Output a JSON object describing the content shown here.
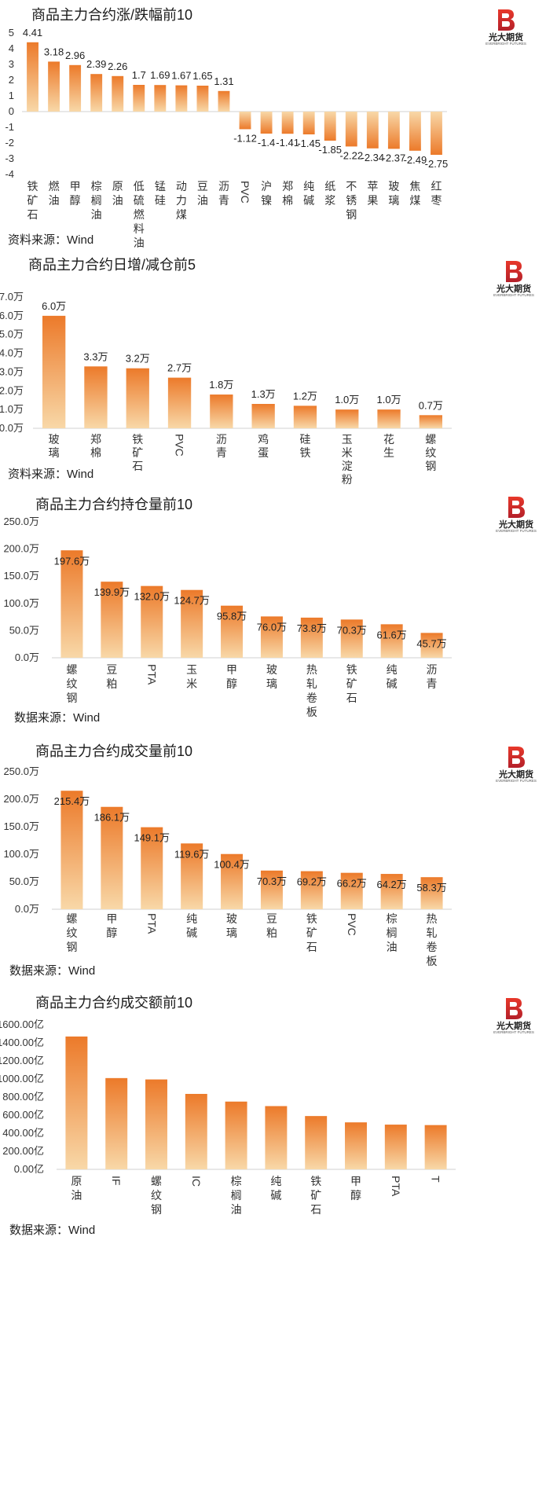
{
  "brand": {
    "name": "光大期货",
    "name_en": "EVERBRIGHT FUTURES",
    "colors": {
      "bar_top": "#ec7a2a",
      "bar_bottom": "#f8d8a8",
      "logo": "#e8382a",
      "logo_dark": "#b3202a"
    }
  },
  "chart_data": [
    {
      "type": "bar",
      "title": "商品主力合约涨/跌幅前10",
      "source": "资料来源：Wind",
      "categories": [
        "铁矿石",
        "燃油",
        "甲醇",
        "棕榈油",
        "原油",
        "低硫燃料油",
        "锰硅",
        "动力煤",
        "豆油",
        "沥青",
        "PVC",
        "沪镍",
        "郑棉",
        "纯碱",
        "纸浆",
        "不锈钢",
        "苹果",
        "玻璃",
        "焦煤",
        "红枣"
      ],
      "values": [
        4.41,
        3.18,
        2.96,
        2.39,
        2.26,
        1.7,
        1.69,
        1.67,
        1.65,
        1.31,
        -1.12,
        -1.4,
        -1.41,
        -1.45,
        -1.85,
        -2.22,
        -2.34,
        -2.37,
        -2.49,
        -2.75
      ],
      "data_labels": [
        "4.41",
        "3.18",
        "2.96",
        "2.39",
        "2.26",
        "1.7",
        "1.69",
        "1.67",
        "1.65",
        "1.31",
        "-1.12",
        "-1.4",
        "-1.41",
        "-1.45",
        "-1.85",
        "-2.22",
        "-2.34",
        "-2.37",
        "-2.49",
        "-2.75"
      ],
      "y_ticks": [
        "5",
        "4",
        "3",
        "2",
        "1",
        "0",
        "-1",
        "-2",
        "-3",
        "-4"
      ],
      "ylim": [
        -4,
        5
      ],
      "grid": false
    },
    {
      "type": "bar",
      "title": "商品主力合约日增/减仓前5",
      "source": "资料来源：Wind",
      "categories": [
        "玻璃",
        "郑棉",
        "铁矿石",
        "PVC",
        "沥青",
        "鸡蛋",
        "硅铁",
        "玉米淀粉",
        "花生",
        "螺纹钢"
      ],
      "values": [
        6.0,
        3.3,
        3.2,
        2.7,
        1.8,
        1.3,
        1.2,
        1.0,
        1.0,
        0.7
      ],
      "data_labels": [
        "6.0万",
        "3.3万",
        "3.2万",
        "2.7万",
        "1.8万",
        "1.3万",
        "1.2万",
        "1.0万",
        "1.0万",
        "0.7万"
      ],
      "y_ticks": [
        "7.0万",
        "6.0万",
        "5.0万",
        "4.0万",
        "3.0万",
        "2.0万",
        "1.0万",
        "0.0万"
      ],
      "ylim": [
        0,
        7
      ],
      "grid": false
    },
    {
      "type": "bar",
      "title": "商品主力合约持仓量前10",
      "source": "数据来源：Wind",
      "categories": [
        "螺纹钢",
        "豆粕",
        "PTA",
        "玉米",
        "甲醇",
        "玻璃",
        "热轧卷板",
        "铁矿石",
        "纯碱",
        "沥青"
      ],
      "values": [
        197.6,
        139.9,
        132.0,
        124.7,
        95.8,
        76.0,
        73.8,
        70.3,
        61.6,
        45.7
      ],
      "data_labels": [
        "197.6万",
        "139.9万",
        "132.0万",
        "124.7万",
        "95.8万",
        "76.0万",
        "73.8万",
        "70.3万",
        "61.6万",
        "45.7万"
      ],
      "y_ticks": [
        "250.0万",
        "200.0万",
        "150.0万",
        "100.0万",
        "50.0万",
        "0.0万"
      ],
      "ylim": [
        0,
        250
      ],
      "grid": false
    },
    {
      "type": "bar",
      "title": "商品主力合约成交量前10",
      "source": "数据来源：Wind",
      "categories": [
        "螺纹钢",
        "甲醇",
        "PTA",
        "纯碱",
        "玻璃",
        "豆粕",
        "铁矿石",
        "PVC",
        "棕榈油",
        "热轧卷板"
      ],
      "values": [
        215.4,
        186.1,
        149.1,
        119.6,
        100.4,
        70.3,
        69.2,
        66.2,
        64.2,
        58.3
      ],
      "data_labels": [
        "215.4万",
        "186.1万",
        "149.1万",
        "119.6万",
        "100.4万",
        "70.3万",
        "69.2万",
        "66.2万",
        "64.2万",
        "58.3万"
      ],
      "y_ticks": [
        "250.0万",
        "200.0万",
        "150.0万",
        "100.0万",
        "50.0万",
        "0.0万"
      ],
      "ylim": [
        0,
        250
      ],
      "grid": false
    },
    {
      "type": "bar",
      "title": "商品主力合约成交额前10",
      "source": "数据来源：Wind",
      "categories": [
        "原油",
        "IF",
        "螺纹钢",
        "IC",
        "棕榈油",
        "纯碱",
        "铁矿石",
        "甲醇",
        "PTA",
        "T"
      ],
      "values": [
        1470,
        1010,
        995,
        835,
        750,
        700,
        590,
        520,
        495,
        490
      ],
      "data_labels": [],
      "y_ticks": [
        "1600.00亿",
        "1400.00亿",
        "1200.00亿",
        "1000.00亿",
        "800.00亿",
        "600.00亿",
        "400.00亿",
        "200.00亿",
        "0.00亿"
      ],
      "ylim": [
        0,
        1600
      ],
      "grid": false
    }
  ]
}
